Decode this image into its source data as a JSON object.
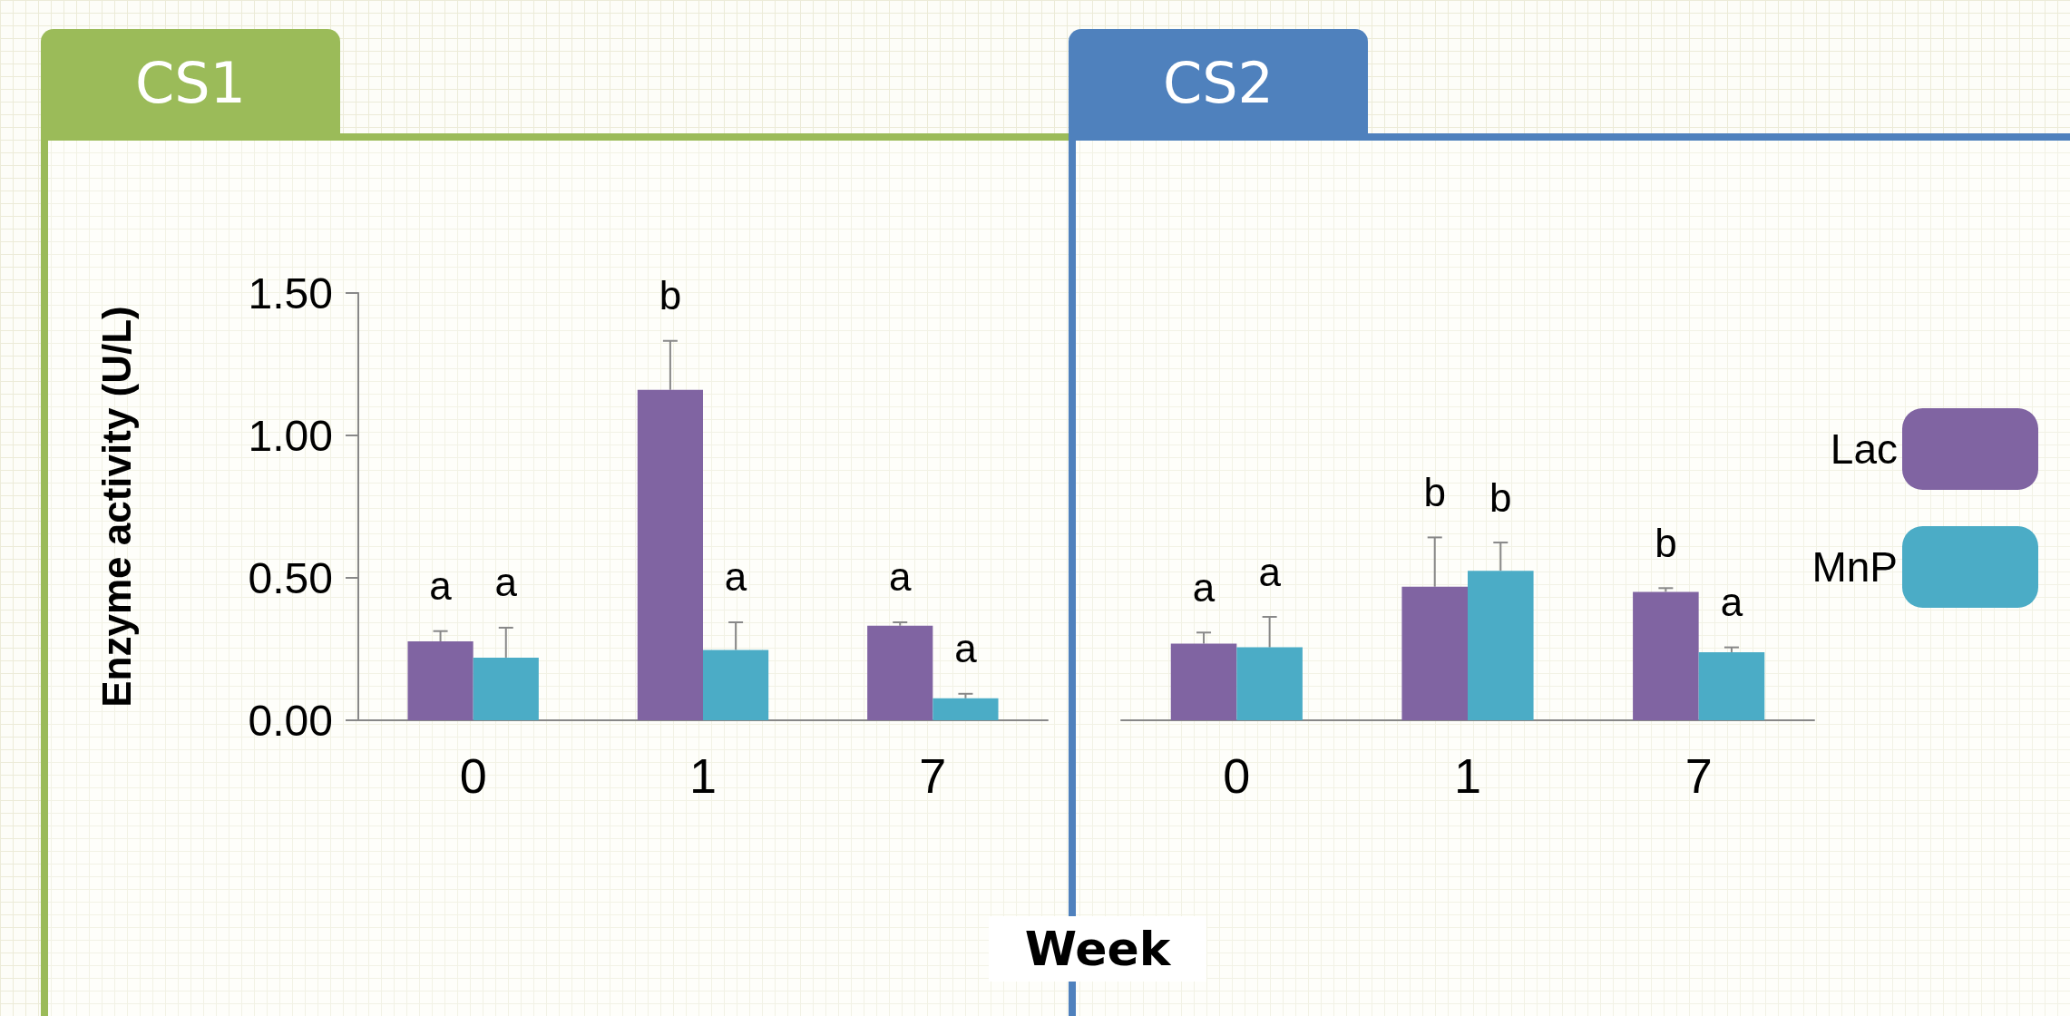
{
  "chart_data": [
    {
      "type": "bar",
      "title": "CS1",
      "xlabel": "Week",
      "ylabel": "Enzyme activity (U/L)",
      "categories": [
        "0",
        "1",
        "7"
      ],
      "series": [
        {
          "color": "#8064a2",
          "values": [
            0.277,
            1.16,
            0.332
          ],
          "errors": [
            [
              0.277,
              0.313
            ],
            [
              1.16,
              1.332
            ],
            [
              0.332,
              0.344
            ]
          ]
        },
        {
          "color": "#4bacc6",
          "values": [
            0.22,
            0.247,
            0.077
          ],
          "errors": [
            [
              0.22,
              0.325
            ],
            [
              0.247,
              0.344
            ],
            [
              0.077,
              0.093
            ]
          ]
        }
      ],
      "ylim": [
        0,
        1.5
      ],
      "yticks": [
        {
          "value": 0,
          "label": "0.00"
        },
        {
          "value": 0.5,
          "label": "0.50"
        },
        {
          "value": 1,
          "label": "1.00"
        },
        {
          "value": 1.5,
          "label": "1.50"
        }
      ],
      "annotations": [
        "a",
        "a",
        "b",
        "a",
        "a",
        "a"
      ],
      "grid": false,
      "color": "#9bbb59"
    },
    {
      "type": "bar",
      "title": "CS2",
      "categories": [
        "0",
        "1",
        "7"
      ],
      "series": [
        {
          "name": "Lac",
          "color": "#8064a2",
          "values": [
            0.269,
            0.469,
            0.451
          ],
          "errors": [
            [
              0.269,
              0.308
            ],
            [
              0.469,
              0.642
            ],
            [
              0.451,
              0.464
            ]
          ]
        },
        {
          "name": "MnP",
          "color": "#4bacc6",
          "values": [
            0.256,
            0.525,
            0.239
          ],
          "errors": [
            [
              0.256,
              0.363
            ],
            [
              0.525,
              0.624
            ],
            [
              0.239,
              0.256
            ]
          ]
        }
      ],
      "ylim": [
        0,
        1.5
      ],
      "tick_labels": "x",
      "annotations": [
        "a",
        "a",
        "b",
        "b",
        "b",
        "a"
      ],
      "legend": "right",
      "grid": false,
      "color": "#4f81bd"
    }
  ]
}
